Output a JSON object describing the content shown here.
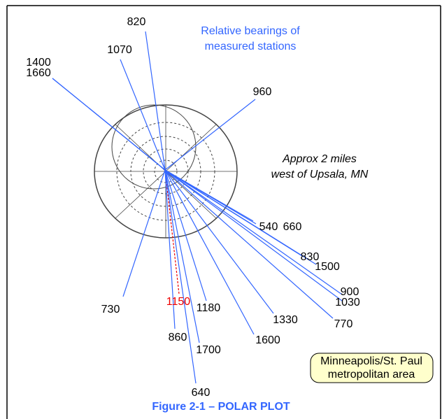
{
  "title": [
    "Relative bearings of",
    "measured stations"
  ],
  "annotation": [
    "Approx 2 miles",
    "west of Upsala, MN"
  ],
  "box": [
    "Minneapolis/St. Paul",
    "metropolitan area"
  ],
  "caption": "Figure 2-1 – POLAR PLOT",
  "stations": [
    "820",
    "1070",
    "1400",
    "1660",
    "960",
    "540",
    "660",
    "830",
    "1500",
    "900",
    "1030",
    "770",
    "1330",
    "1600",
    "1180",
    "1150",
    "730",
    "860",
    "1700",
    "640"
  ]
}
